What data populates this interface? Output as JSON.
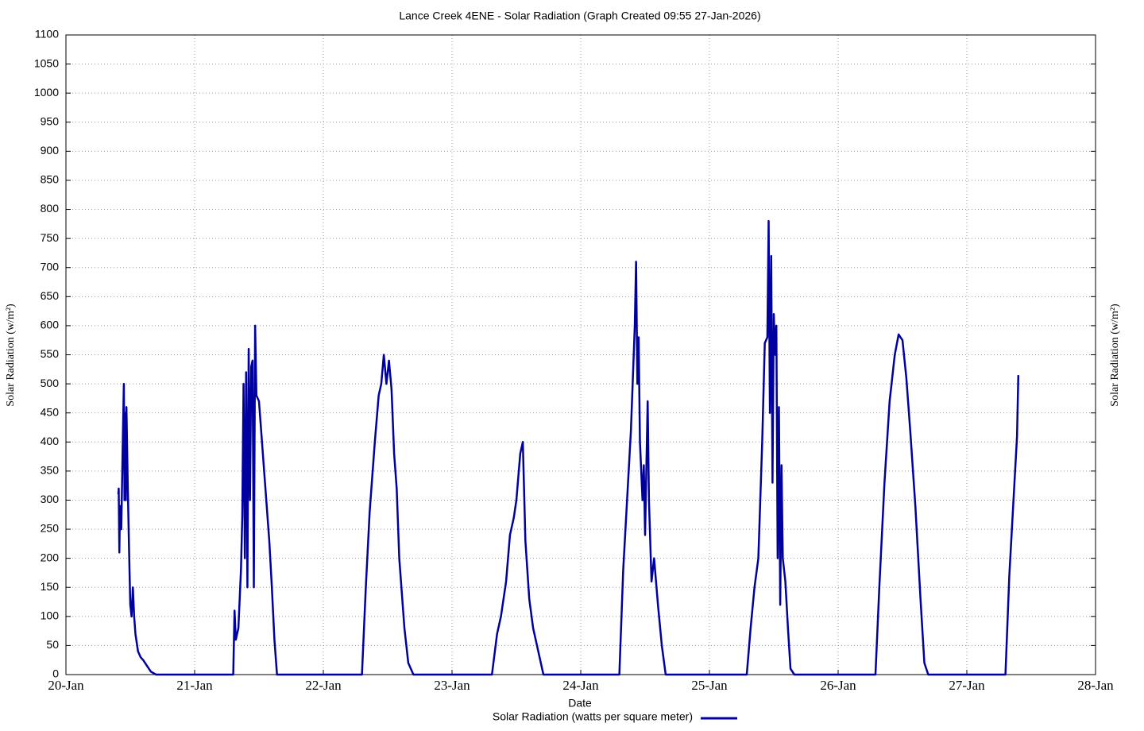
{
  "chart_data": {
    "type": "line",
    "title": "Lance Creek 4ENE - Solar Radiation (Graph Created 09:55 27-Jan-2026)",
    "x_label": "Date",
    "y_label": "Solar Radiation (w/m²)",
    "x": [
      0.407,
      0.41,
      0.415,
      0.42,
      0.43,
      0.44,
      0.45,
      0.455,
      0.46,
      0.465,
      0.47,
      0.48,
      0.49,
      0.5,
      0.51,
      0.52,
      0.53,
      0.54,
      0.56,
      0.58,
      0.6,
      0.63,
      0.66,
      0.7,
      1.3,
      1.31,
      1.32,
      1.34,
      1.36,
      1.37,
      1.38,
      1.39,
      1.4,
      1.41,
      1.42,
      1.43,
      1.44,
      1.45,
      1.46,
      1.47,
      1.48,
      1.5,
      1.53,
      1.55,
      1.58,
      1.6,
      1.62,
      1.64,
      2.3,
      2.33,
      2.36,
      2.4,
      2.43,
      2.45,
      2.47,
      2.49,
      2.51,
      2.53,
      2.55,
      2.57,
      2.59,
      2.61,
      2.63,
      2.66,
      2.7,
      3.31,
      3.35,
      3.38,
      3.42,
      3.45,
      3.48,
      3.5,
      3.53,
      3.55,
      3.57,
      3.6,
      3.63,
      3.66,
      3.71,
      4.3,
      4.33,
      4.36,
      4.39,
      4.42,
      4.43,
      4.44,
      4.45,
      4.46,
      4.48,
      4.49,
      4.5,
      4.52,
      4.53,
      4.55,
      4.57,
      4.6,
      4.63,
      4.66,
      5.29,
      5.32,
      5.35,
      5.38,
      5.41,
      5.43,
      5.45,
      5.46,
      5.47,
      5.48,
      5.49,
      5.5,
      5.51,
      5.52,
      5.53,
      5.54,
      5.55,
      5.56,
      5.57,
      5.59,
      5.61,
      5.63,
      5.66,
      6.29,
      6.32,
      6.36,
      6.4,
      6.44,
      6.47,
      6.5,
      6.53,
      6.56,
      6.6,
      6.64,
      6.67,
      6.7,
      7.3,
      7.33,
      7.36,
      7.39,
      7.4
    ],
    "series": [
      {
        "name": "Solar Radiation (watts per square meter)",
        "color": "#0000a0",
        "values": [
          310,
          320,
          210,
          290,
          250,
          380,
          500,
          300,
          450,
          300,
          460,
          330,
          220,
          120,
          100,
          150,
          100,
          70,
          40,
          30,
          25,
          15,
          5,
          0,
          0,
          110,
          60,
          80,
          180,
          270,
          500,
          200,
          520,
          150,
          560,
          300,
          530,
          540,
          150,
          600,
          480,
          470,
          380,
          320,
          230,
          150,
          60,
          0,
          0,
          150,
          280,
          400,
          480,
          500,
          550,
          500,
          540,
          490,
          380,
          320,
          200,
          140,
          80,
          20,
          0,
          0,
          70,
          100,
          160,
          240,
          270,
          300,
          380,
          400,
          230,
          130,
          80,
          50,
          0,
          0,
          180,
          300,
          420,
          600,
          710,
          500,
          580,
          400,
          300,
          360,
          240,
          470,
          300,
          160,
          200,
          120,
          50,
          0,
          0,
          80,
          150,
          200,
          400,
          570,
          580,
          780,
          450,
          720,
          330,
          620,
          550,
          600,
          200,
          460,
          120,
          360,
          200,
          160,
          80,
          10,
          0,
          0,
          150,
          330,
          470,
          550,
          585,
          575,
          510,
          420,
          290,
          130,
          20,
          0,
          0,
          170,
          290,
          410,
          515
        ]
      }
    ],
    "xlim": [
      0,
      8
    ],
    "xticks": [
      {
        "value": 0,
        "label": "20-Jan"
      },
      {
        "value": 1,
        "label": "21-Jan"
      },
      {
        "value": 2,
        "label": "22-Jan"
      },
      {
        "value": 3,
        "label": "23-Jan"
      },
      {
        "value": 4,
        "label": "24-Jan"
      },
      {
        "value": 5,
        "label": "25-Jan"
      },
      {
        "value": 6,
        "label": "26-Jan"
      },
      {
        "value": 7,
        "label": "27-Jan"
      },
      {
        "value": 8,
        "label": "28-Jan"
      }
    ],
    "ylim": [
      0,
      1100
    ],
    "yticks": [
      0,
      50,
      100,
      150,
      200,
      250,
      300,
      350,
      400,
      450,
      500,
      550,
      600,
      650,
      700,
      750,
      800,
      850,
      900,
      950,
      1000,
      1050,
      1100
    ],
    "grid": true
  }
}
